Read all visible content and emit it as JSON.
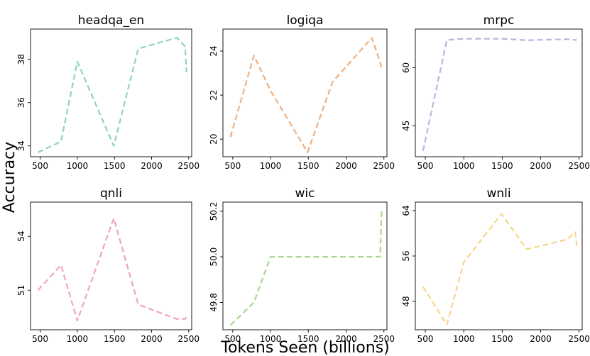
{
  "figure": {
    "xlabel": "Tokens Seen (billions)",
    "ylabel": "Accuracy"
  },
  "chart_data": [
    {
      "type": "line",
      "title": "headqa_en",
      "color": "#8fd3bd",
      "x": [
        470,
        780,
        1000,
        1490,
        1820,
        2340,
        2450,
        2470
      ],
      "y": [
        33.7,
        34.2,
        37.9,
        34.0,
        38.5,
        39.0,
        38.6,
        37.4
      ],
      "xlim": [
        370,
        2540
      ],
      "ylim": [
        33.5,
        39.4
      ],
      "xticks": [
        500,
        1000,
        1500,
        2000,
        2500
      ],
      "yticks": [
        34,
        36,
        38
      ]
    },
    {
      "type": "line",
      "title": "logiqa",
      "color": "#eeb07f",
      "x": [
        470,
        780,
        1000,
        1490,
        1820,
        2340,
        2450,
        2470
      ],
      "y": [
        20.1,
        23.8,
        22.2,
        19.4,
        22.6,
        24.6,
        23.5,
        23.2
      ],
      "xlim": [
        370,
        2540
      ],
      "ylim": [
        19.2,
        25.0
      ],
      "xticks": [
        500,
        1000,
        1500,
        2000,
        2500
      ],
      "yticks": [
        20,
        22,
        24
      ]
    },
    {
      "type": "line",
      "title": "mrpc",
      "color": "#bdb3dd",
      "x": [
        470,
        780,
        1000,
        1490,
        1820,
        2340,
        2450,
        2470
      ],
      "y": [
        38.5,
        67.2,
        67.5,
        67.5,
        67.1,
        67.4,
        67.2,
        67.2
      ],
      "xlim": [
        370,
        2540
      ],
      "ylim": [
        37,
        70
      ],
      "xticks": [
        500,
        1000,
        1500,
        2000,
        2500
      ],
      "yticks": [
        45,
        60
      ]
    },
    {
      "type": "line",
      "title": "qnli",
      "color": "#f0a2c8",
      "x": [
        470,
        780,
        1000,
        1490,
        1820,
        2340,
        2450,
        2470
      ],
      "y": [
        51.0,
        52.4,
        49.3,
        55.0,
        50.2,
        49.4,
        49.4,
        49.5
      ],
      "xlim": [
        370,
        2540
      ],
      "ylim": [
        48.8,
        55.9
      ],
      "xticks": [
        500,
        1000,
        1500,
        2000,
        2500
      ],
      "yticks": [
        51,
        54
      ]
    },
    {
      "type": "line",
      "title": "wic",
      "color": "#aad68d",
      "x": [
        470,
        780,
        1000,
        1490,
        1820,
        2340,
        2450,
        2470
      ],
      "y": [
        49.7,
        49.8,
        50.0,
        50.0,
        50.0,
        50.0,
        50.0,
        50.2
      ],
      "xlim": [
        370,
        2540
      ],
      "ylim": [
        49.68,
        50.24
      ],
      "xticks": [
        500,
        1000,
        1500,
        2000,
        2500
      ],
      "yticks": [
        49.8,
        50.0,
        50.2
      ]
    },
    {
      "type": "line",
      "title": "wnli",
      "color": "#f8d589",
      "x": [
        470,
        780,
        1000,
        1490,
        1820,
        2340,
        2450,
        2470
      ],
      "y": [
        50.6,
        43.9,
        54.9,
        63.4,
        57.2,
        58.9,
        60.2,
        57.8
      ],
      "xlim": [
        370,
        2540
      ],
      "ylim": [
        43.0,
        65.5
      ],
      "xticks": [
        500,
        1000,
        1500,
        2000,
        2500
      ],
      "yticks": [
        48,
        56,
        64
      ]
    }
  ]
}
